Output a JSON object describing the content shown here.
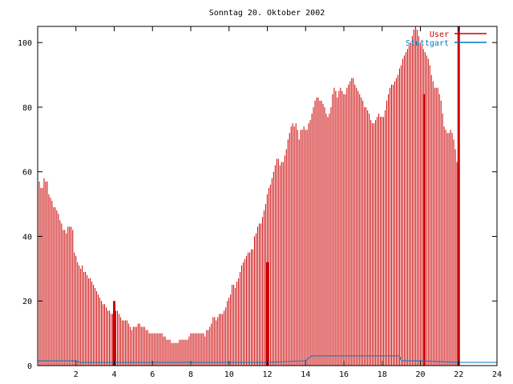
{
  "chart_data": {
    "type": "bar",
    "title": "Sonntag 20. Oktober 2002",
    "xlabel": "",
    "ylabel": "",
    "xlim": [
      0,
      24
    ],
    "ylim": [
      0,
      105
    ],
    "x_ticks": [
      2,
      4,
      6,
      8,
      10,
      12,
      14,
      16,
      18,
      20,
      22,
      24
    ],
    "x_tick_labels": [
      "2",
      "4",
      "6",
      "8",
      "10",
      "12",
      "14",
      "16",
      "18",
      "20",
      "22",
      "24"
    ],
    "y_ticks": [
      0,
      20,
      40,
      60,
      80,
      100
    ],
    "y_tick_labels": [
      "0",
      "20",
      "40",
      "60",
      "80",
      "100"
    ],
    "grid": false,
    "legend_position": "top-right",
    "series": [
      {
        "name": "User",
        "color": "#cc0000",
        "style": "impulses",
        "x_start": 0.083,
        "x_step": 0.0833,
        "values": [
          57,
          55,
          55,
          58,
          57,
          57,
          53,
          52,
          51,
          49,
          49,
          48,
          47,
          45,
          44,
          42,
          42,
          41,
          43,
          43,
          43,
          42,
          35,
          34,
          32,
          31,
          30,
          31,
          29,
          29,
          28,
          27,
          27,
          26,
          25,
          24,
          23,
          22,
          21,
          20,
          19,
          19,
          18,
          17,
          17,
          16,
          16,
          16,
          17,
          17,
          16,
          15,
          14,
          14,
          14,
          14,
          13,
          12,
          11,
          12,
          12,
          12,
          13,
          13,
          12,
          12,
          12,
          11,
          11,
          10,
          10,
          10,
          10,
          10,
          10,
          10,
          10,
          10,
          9,
          9,
          8,
          8,
          8,
          7,
          7,
          7,
          7,
          7,
          8,
          8,
          8,
          8,
          8,
          8,
          9,
          10,
          10,
          10,
          10,
          10,
          10,
          10,
          10,
          10,
          9,
          11,
          11,
          12,
          13,
          15,
          15,
          14,
          15,
          16,
          16,
          16,
          17,
          18,
          20,
          21,
          22,
          25,
          25,
          24,
          26,
          27,
          29,
          31,
          32,
          33,
          34,
          35,
          35,
          36,
          36,
          40,
          41,
          43,
          44,
          44,
          46,
          48,
          50,
          53,
          55,
          56,
          58,
          60,
          62,
          64,
          64,
          62,
          63,
          63,
          65,
          67,
          70,
          72,
          74,
          75,
          74,
          75,
          73,
          70,
          73,
          73,
          74,
          73,
          73,
          75,
          76,
          78,
          80,
          82,
          83,
          83,
          82,
          82,
          81,
          80,
          78,
          77,
          78,
          80,
          84,
          86,
          85,
          83,
          85,
          86,
          85,
          84,
          84,
          86,
          87,
          88,
          89,
          89,
          87,
          86,
          85,
          84,
          83,
          82,
          80,
          80,
          79,
          78,
          76,
          75,
          75,
          76,
          77,
          78,
          77,
          77,
          77,
          79,
          82,
          84,
          86,
          87,
          87,
          88,
          89,
          90,
          92,
          93,
          95,
          96,
          97,
          98,
          99,
          100,
          102,
          104,
          105,
          104,
          102,
          100,
          99,
          98,
          97,
          96,
          95,
          93,
          90,
          88,
          86,
          86,
          86,
          84,
          82,
          78,
          74,
          73,
          72,
          72,
          73,
          72,
          70,
          67,
          63
        ]
      },
      {
        "name": "Stuttgart",
        "color": "#0077bb",
        "style": "line",
        "x": [
          0,
          2,
          2.2,
          4,
          8,
          10,
          12,
          14,
          14.3,
          16,
          18,
          18.9,
          19,
          19.5,
          20,
          22,
          24
        ],
        "values": [
          1.5,
          1.5,
          1.0,
          1.0,
          1.0,
          1.0,
          1.0,
          1.5,
          3.0,
          3.0,
          3.0,
          3.0,
          1.5,
          1.5,
          1.5,
          1.0,
          1.0
        ]
      }
    ],
    "highlight_bars": [
      {
        "x": 4.0,
        "value": 20
      },
      {
        "x": 12.0,
        "value": 32
      },
      {
        "x": 20.2,
        "value": 84
      },
      {
        "x": 22.0,
        "value": 105
      }
    ]
  }
}
